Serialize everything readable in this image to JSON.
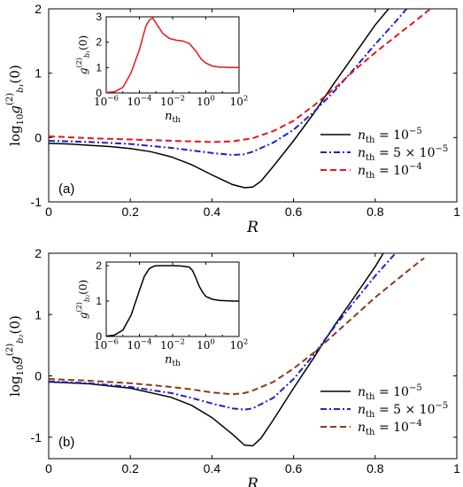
{
  "figure": {
    "panel_labels": [
      "(a)",
      "(b)"
    ]
  },
  "chart_data": [
    {
      "id": "panel-a",
      "type": "line",
      "panel_label": "(a)",
      "xlabel": "R",
      "ylabel": "log10 g^(2)_b1(0)",
      "xlim": [
        0,
        1
      ],
      "ylim": [
        -1,
        2
      ],
      "xticks": [
        0,
        0.2,
        0.4,
        0.6,
        0.8,
        1
      ],
      "xtick_labels": [
        "0",
        "0.2",
        "0.4",
        "0.6",
        "0.8",
        "1"
      ],
      "yticks": [
        -1,
        0,
        1,
        2
      ],
      "ytick_labels": [
        "-1",
        "0",
        "1",
        "2"
      ],
      "legend_position": "right",
      "series": [
        {
          "name": "n_th = 10^-5",
          "legend_main": "n",
          "legend_sub": "th",
          "legend_rhs": "= 10",
          "legend_sup": "−5",
          "color": "#000000",
          "dash": "solid",
          "x": [
            0,
            0.05,
            0.1,
            0.15,
            0.2,
            0.25,
            0.3,
            0.35,
            0.4,
            0.45,
            0.48,
            0.5,
            0.52,
            0.55,
            0.6,
            0.65,
            0.7,
            0.75,
            0.8,
            0.833
          ],
          "y": [
            -0.09,
            -0.1,
            -0.12,
            -0.14,
            -0.17,
            -0.22,
            -0.3,
            -0.42,
            -0.58,
            -0.73,
            -0.78,
            -0.77,
            -0.68,
            -0.45,
            -0.05,
            0.38,
            0.85,
            1.3,
            1.75,
            2.0
          ]
        },
        {
          "name": "n_th = 5×10^-5",
          "legend_main": "n",
          "legend_sub": "th",
          "legend_rhs": "= 5 × 10",
          "legend_sup": "−5",
          "color": "#1f1fcc",
          "dash": "dashdot",
          "x": [
            0,
            0.1,
            0.2,
            0.3,
            0.35,
            0.4,
            0.45,
            0.48,
            0.5,
            0.55,
            0.6,
            0.65,
            0.7,
            0.75,
            0.8,
            0.85,
            0.877
          ],
          "y": [
            -0.05,
            -0.07,
            -0.1,
            -0.16,
            -0.2,
            -0.24,
            -0.27,
            -0.26,
            -0.22,
            -0.08,
            0.12,
            0.4,
            0.72,
            1.08,
            1.45,
            1.8,
            2.0
          ]
        },
        {
          "name": "n_th = 10^-4",
          "legend_main": "n",
          "legend_sub": "th",
          "legend_rhs": "= 10",
          "legend_sup": "−4",
          "color": "#e8151b",
          "dash": "dash",
          "x": [
            0,
            0.1,
            0.2,
            0.3,
            0.4,
            0.45,
            0.5,
            0.55,
            0.6,
            0.65,
            0.7,
            0.75,
            0.8,
            0.85,
            0.9,
            0.935
          ],
          "y": [
            0.02,
            -0.01,
            -0.03,
            -0.05,
            -0.07,
            -0.06,
            -0.01,
            0.1,
            0.26,
            0.5,
            0.76,
            1.05,
            1.32,
            1.57,
            1.82,
            2.0
          ]
        }
      ],
      "inset": {
        "type": "line",
        "xlabel": "n_th",
        "ylabel": "g^(2)_b1(0)",
        "xscale": "log",
        "xlim": [
          -6,
          2
        ],
        "ylim": [
          0,
          3
        ],
        "xtick_labels": [
          "10^-6",
          "10^-4",
          "10^-2",
          "10^0",
          "10^2"
        ],
        "yticks": [
          0,
          1,
          2,
          3
        ],
        "ytick_labels": [
          "0",
          "1",
          "2",
          "3"
        ],
        "series": [
          {
            "color": "#e8151b",
            "log10_x": [
              -6,
              -5.5,
              -5,
              -4.5,
              -4.2,
              -4,
              -3.8,
              -3.6,
              -3.4,
              -3.2,
              -3,
              -2.6,
              -2.2,
              -1.8,
              -1.4,
              -1,
              -0.6,
              -0.3,
              0,
              0.4,
              0.8,
              1.2,
              1.6,
              2
            ],
            "y": [
              0.02,
              0.05,
              0.22,
              0.8,
              1.35,
              1.7,
              2.2,
              2.65,
              2.88,
              2.95,
              2.75,
              2.35,
              2.15,
              2.08,
              2.05,
              1.95,
              1.65,
              1.35,
              1.18,
              1.06,
              1.02,
              1.01,
              1.0,
              1.0
            ]
          }
        ]
      }
    },
    {
      "id": "panel-b",
      "type": "line",
      "panel_label": "(b)",
      "xlabel": "R",
      "ylabel": "log10 g^(2)_b2(0)",
      "xlim": [
        0,
        1
      ],
      "ylim": [
        -1.35,
        2
      ],
      "xticks": [
        0,
        0.2,
        0.4,
        0.6,
        0.8,
        1
      ],
      "xtick_labels": [
        "0",
        "0.2",
        "0.4",
        "0.6",
        "0.8",
        "1"
      ],
      "yticks": [
        -1,
        0,
        1,
        2
      ],
      "ytick_labels": [
        "-1",
        "0",
        "1",
        "2"
      ],
      "legend_position": "bottom-right",
      "series": [
        {
          "name": "n_th = 10^-5",
          "legend_main": "n",
          "legend_sub": "th",
          "legend_rhs": "= 10",
          "legend_sup": "−5",
          "color": "#000000",
          "dash": "solid",
          "x": [
            0,
            0.1,
            0.2,
            0.3,
            0.35,
            0.4,
            0.45,
            0.48,
            0.5,
            0.52,
            0.55,
            0.6,
            0.65,
            0.7,
            0.75,
            0.8,
            0.82
          ],
          "y": [
            -0.1,
            -0.13,
            -0.2,
            -0.35,
            -0.48,
            -0.68,
            -0.95,
            -1.13,
            -1.14,
            -1.02,
            -0.72,
            -0.2,
            0.3,
            0.82,
            1.3,
            1.78,
            2.0
          ]
        },
        {
          "name": "n_th = 5×10^-5",
          "legend_main": "n",
          "legend_sub": "th",
          "legend_rhs": "= 5 × 10",
          "legend_sup": "−5",
          "color": "#1f1fcc",
          "dash": "dashdot",
          "x": [
            0,
            0.1,
            0.2,
            0.3,
            0.35,
            0.4,
            0.45,
            0.48,
            0.5,
            0.55,
            0.6,
            0.65,
            0.7,
            0.75,
            0.8,
            0.85
          ],
          "y": [
            -0.09,
            -0.12,
            -0.18,
            -0.28,
            -0.36,
            -0.45,
            -0.53,
            -0.55,
            -0.53,
            -0.36,
            -0.05,
            0.35,
            0.8,
            1.22,
            1.63,
            2.0
          ]
        },
        {
          "name": "n_th = 10^-4",
          "legend_main": "n",
          "legend_sub": "th",
          "legend_rhs": "= 10",
          "legend_sup": "−4",
          "color": "#8b3a1a",
          "dash": "dash",
          "x": [
            0,
            0.1,
            0.2,
            0.3,
            0.35,
            0.4,
            0.45,
            0.48,
            0.5,
            0.55,
            0.6,
            0.65,
            0.7,
            0.75,
            0.8,
            0.85,
            0.9,
            0.92
          ],
          "y": [
            -0.05,
            -0.08,
            -0.12,
            -0.18,
            -0.22,
            -0.27,
            -0.3,
            -0.28,
            -0.24,
            -0.1,
            0.12,
            0.38,
            0.68,
            0.98,
            1.28,
            1.55,
            1.82,
            1.92
          ]
        }
      ],
      "inset": {
        "type": "line",
        "xlabel": "n_th",
        "ylabel": "g^(2)_b2(0)",
        "xscale": "log",
        "xlim": [
          -6,
          2
        ],
        "ylim": [
          0,
          2.1
        ],
        "xtick_labels": [
          "10^-6",
          "10^-4",
          "10^-2",
          "10^0",
          "10^2"
        ],
        "yticks": [
          0,
          1,
          2
        ],
        "ytick_labels": [
          "0",
          "1",
          "2"
        ],
        "series": [
          {
            "color": "#000000",
            "log10_x": [
              -6,
              -5.5,
              -5,
              -4.5,
              -4,
              -3.7,
              -3.4,
              -3.1,
              -2.8,
              -2.5,
              -2,
              -1.5,
              -1,
              -0.8,
              -0.6,
              -0.4,
              -0.2,
              0,
              0.4,
              0.8,
              1.2,
              1.6,
              2
            ],
            "y": [
              0.01,
              0.04,
              0.18,
              0.6,
              1.3,
              1.7,
              1.92,
              1.99,
              2.0,
              2.0,
              2.0,
              1.99,
              1.96,
              1.86,
              1.65,
              1.42,
              1.25,
              1.13,
              1.05,
              1.02,
              1.01,
              1.0,
              1.0
            ]
          }
        ]
      }
    }
  ]
}
